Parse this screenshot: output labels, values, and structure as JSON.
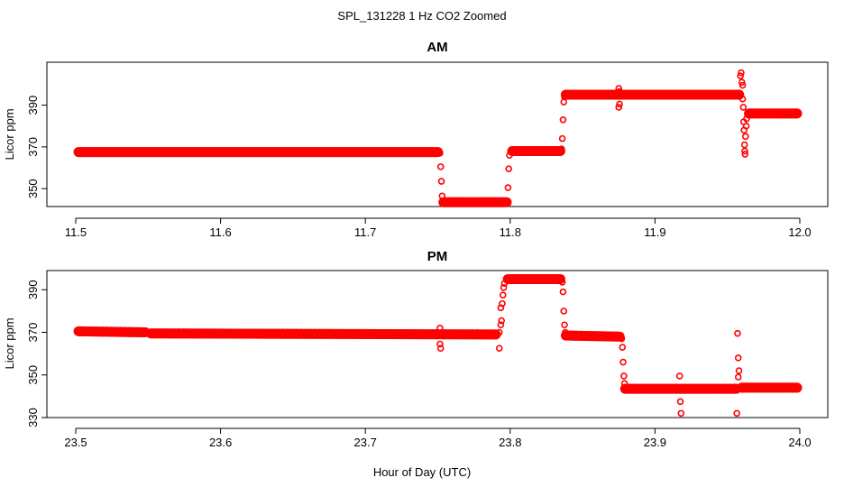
{
  "figure": {
    "title": "SPL_131228  1 Hz CO2 Zoomed",
    "xlabel": "Hour of Day (UTC)"
  },
  "colors": {
    "series": "#ff0000",
    "axes": "#000000"
  },
  "chart_data": [
    {
      "type": "scatter",
      "title": "AM",
      "ylabel": "Licor ppm",
      "xlim": [
        11.5,
        12.0
      ],
      "ylim": [
        341,
        411
      ],
      "x_ticks": [
        11.5,
        11.6,
        11.7,
        11.8,
        11.9,
        12.0
      ],
      "x_tick_labels": [
        "11.5",
        "11.6",
        "11.7",
        "11.8",
        "11.9",
        "12.0"
      ],
      "y_ticks": [
        350,
        370,
        390
      ],
      "y_tick_labels": [
        "350",
        "370",
        "390"
      ],
      "segments": [
        {
          "x": [
            11.5,
            11.752
          ],
          "y": [
            367.5,
            367.5
          ]
        },
        {
          "x": [
            11.752,
            11.7995
          ],
          "y": [
            343.5,
            343.5
          ]
        },
        {
          "x": [
            11.7995,
            11.8365
          ],
          "y": [
            368.0,
            368.0
          ]
        },
        {
          "x": [
            11.8365,
            11.96
          ],
          "y": [
            395.0,
            395.0
          ]
        },
        {
          "x": [
            11.963,
            12.0
          ],
          "y": [
            386.0,
            386.0
          ]
        }
      ],
      "points": [
        {
          "x": 11.7515,
          "y": 367.0
        },
        {
          "x": 11.752,
          "y": 360.5
        },
        {
          "x": 11.7525,
          "y": 353.5
        },
        {
          "x": 11.753,
          "y": 346.5
        },
        {
          "x": 11.7535,
          "y": 344.0
        },
        {
          "x": 11.798,
          "y": 344.0
        },
        {
          "x": 11.7985,
          "y": 350.5
        },
        {
          "x": 11.799,
          "y": 359.5
        },
        {
          "x": 11.7995,
          "y": 366.0
        },
        {
          "x": 11.8355,
          "y": 369.0
        },
        {
          "x": 11.836,
          "y": 374.0
        },
        {
          "x": 11.8365,
          "y": 383.0
        },
        {
          "x": 11.837,
          "y": 391.5
        },
        {
          "x": 11.8375,
          "y": 394.0
        },
        {
          "x": 11.875,
          "y": 398.0
        },
        {
          "x": 11.8755,
          "y": 396.5
        },
        {
          "x": 11.875,
          "y": 389.0
        },
        {
          "x": 11.8755,
          "y": 390.5
        },
        {
          "x": 11.959,
          "y": 404.0
        },
        {
          "x": 11.9595,
          "y": 405.5
        },
        {
          "x": 11.96,
          "y": 401.0
        },
        {
          "x": 11.9605,
          "y": 399.5
        },
        {
          "x": 11.9605,
          "y": 393.0
        },
        {
          "x": 11.961,
          "y": 389.0
        },
        {
          "x": 11.9612,
          "y": 382.0
        },
        {
          "x": 11.9615,
          "y": 378.0
        },
        {
          "x": 11.9618,
          "y": 371.0
        },
        {
          "x": 11.962,
          "y": 368.0
        },
        {
          "x": 11.9622,
          "y": 366.5
        },
        {
          "x": 11.9625,
          "y": 375.0
        },
        {
          "x": 11.963,
          "y": 380.0
        },
        {
          "x": 11.9632,
          "y": 383.5
        }
      ]
    },
    {
      "type": "scatter",
      "title": "PM",
      "ylabel": "Licor ppm",
      "xlim": [
        23.5,
        24.0
      ],
      "ylim": [
        330,
        399
      ],
      "x_ticks": [
        23.5,
        23.6,
        23.7,
        23.8,
        23.9,
        24.0
      ],
      "x_tick_labels": [
        "23.5",
        "23.6",
        "23.7",
        "23.8",
        "23.9",
        "24.0"
      ],
      "y_ticks": [
        330,
        350,
        370,
        390
      ],
      "y_tick_labels": [
        "330",
        "350",
        "370",
        "390"
      ],
      "segments": [
        {
          "x": [
            23.5,
            23.55
          ],
          "y": [
            370.5,
            370.0
          ]
        },
        {
          "x": [
            23.55,
            23.792
          ],
          "y": [
            369.5,
            369.0
          ]
        },
        {
          "x": [
            23.7965,
            23.8365
          ],
          "y": [
            395.0,
            395.0
          ]
        },
        {
          "x": [
            23.8365,
            23.8775
          ],
          "y": [
            368.5,
            368.0
          ]
        },
        {
          "x": [
            23.8775,
            23.958
          ],
          "y": [
            343.5,
            343.5
          ]
        },
        {
          "x": [
            23.958,
            24.0
          ],
          "y": [
            344.0,
            344.0
          ]
        }
      ],
      "points": [
        {
          "x": 23.7515,
          "y": 372.0
        },
        {
          "x": 23.752,
          "y": 368.5
        },
        {
          "x": 23.7515,
          "y": 364.5
        },
        {
          "x": 23.752,
          "y": 362.5
        },
        {
          "x": 23.7925,
          "y": 370.0
        },
        {
          "x": 23.7925,
          "y": 362.5
        },
        {
          "x": 23.7935,
          "y": 373.5
        },
        {
          "x": 23.794,
          "y": 375.5
        },
        {
          "x": 23.7935,
          "y": 381.5
        },
        {
          "x": 23.7945,
          "y": 383.5
        },
        {
          "x": 23.795,
          "y": 387.5
        },
        {
          "x": 23.7955,
          "y": 391.0
        },
        {
          "x": 23.796,
          "y": 393.0
        },
        {
          "x": 23.836,
          "y": 393.5
        },
        {
          "x": 23.8365,
          "y": 389.0
        },
        {
          "x": 23.837,
          "y": 380.0
        },
        {
          "x": 23.8375,
          "y": 373.5
        },
        {
          "x": 23.838,
          "y": 370.0
        },
        {
          "x": 23.877,
          "y": 367.0
        },
        {
          "x": 23.8775,
          "y": 363.0
        },
        {
          "x": 23.878,
          "y": 356.0
        },
        {
          "x": 23.8785,
          "y": 349.5
        },
        {
          "x": 23.879,
          "y": 346.0
        },
        {
          "x": 23.917,
          "y": 349.5
        },
        {
          "x": 23.9175,
          "y": 337.5
        },
        {
          "x": 23.918,
          "y": 332.0
        },
        {
          "x": 23.957,
          "y": 369.5
        },
        {
          "x": 23.9575,
          "y": 358.0
        },
        {
          "x": 23.958,
          "y": 352.0
        },
        {
          "x": 23.9575,
          "y": 349.0
        },
        {
          "x": 23.9565,
          "y": 332.0
        }
      ]
    }
  ]
}
